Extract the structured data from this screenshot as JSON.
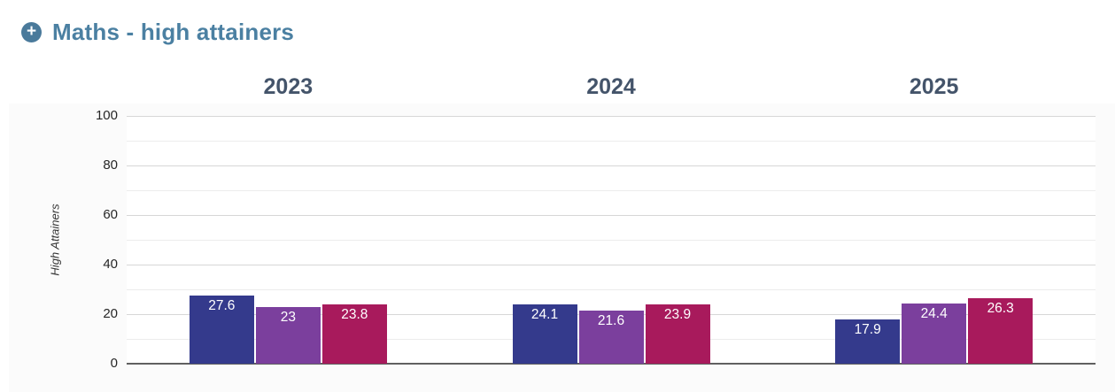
{
  "header": {
    "icon": "plus-circle-icon",
    "icon_glyph": "+",
    "title": "Maths - high attainers",
    "title_color": "#4b80a2"
  },
  "chart_data": {
    "type": "bar",
    "title": "Maths - high attainers",
    "xlabel": "",
    "ylabel": "High Attainers",
    "ylim": [
      0,
      100
    ],
    "yticks": [
      0,
      20,
      40,
      60,
      80,
      100
    ],
    "minor_grid_interval": 10,
    "grid": true,
    "legend": false,
    "value_labels": true,
    "categories": [
      "2023",
      "2024",
      "2025"
    ],
    "series": [
      {
        "name": "series-1",
        "color": "#343a8c",
        "values": [
          27.6,
          24.1,
          17.9
        ]
      },
      {
        "name": "series-2",
        "color": "#7b3f9d",
        "values": [
          23,
          21.6,
          24.4
        ]
      },
      {
        "name": "series-3",
        "color": "#a81a5c",
        "values": [
          23.8,
          23.9,
          26.3
        ]
      }
    ],
    "colors": {
      "major_gridline": "#d7d7d7",
      "minor_gridline": "#ececec",
      "axis_line": "#606060",
      "year_header_text": "#44546a",
      "tick_text": "#262626",
      "value_label_text": "#ffffff"
    }
  }
}
